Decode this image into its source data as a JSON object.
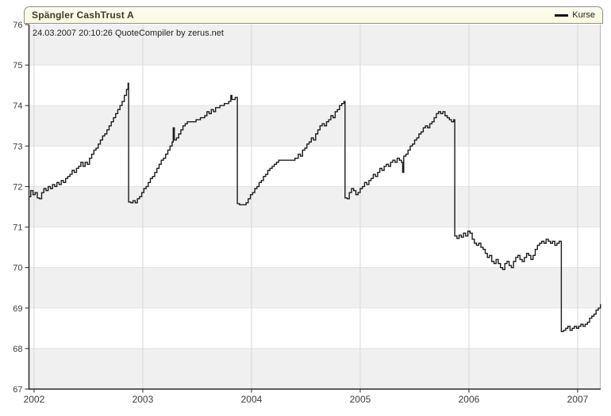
{
  "header": {
    "title": "Spängler CashTrust A",
    "subtitle": "24.03.2007 20:10:26 QuoteCompiler by zerus.net",
    "legend_label": "Kurse"
  },
  "colors": {
    "titlebar_bg": "#f9f9dd",
    "titlebar_border": "#8f8f8f",
    "title_text": "#3e3c20",
    "band_gray": "#f0f0f0",
    "band_white": "#ffffff",
    "vgrid": "#d7d7d7",
    "hgrid": "#e2e2e2",
    "axis": "#2a2a2a",
    "right_border": "#b5b5b5",
    "line": "#1c1c1c",
    "tick_text": "#3d3d3d"
  },
  "chart_data": {
    "type": "line",
    "title": "Spängler CashTrust A",
    "subtitle": "24.03.2007 20:10:26 QuoteCompiler by zerus.net",
    "legend": [
      "Kurse"
    ],
    "legend_position": "top-right",
    "step": true,
    "grid": true,
    "band_fill": "alternating-gray-on-odd-integers",
    "xlabel": "",
    "ylabel": "",
    "xlim": [
      2001.953,
      2007.212
    ],
    "ylim": [
      67,
      76
    ],
    "x_ticks": [
      2002,
      2003,
      2004,
      2005,
      2006,
      2007
    ],
    "y_ticks": [
      67,
      68,
      69,
      70,
      71,
      72,
      73,
      74,
      75,
      76
    ],
    "series": [
      {
        "name": "Kurse",
        "points": [
          [
            2001.953,
            71.75
          ],
          [
            2001.97,
            71.9
          ],
          [
            2001.99,
            71.8
          ],
          [
            2002.01,
            71.85
          ],
          [
            2002.03,
            71.72
          ],
          [
            2002.05,
            71.7
          ],
          [
            2002.07,
            71.85
          ],
          [
            2002.09,
            71.95
          ],
          [
            2002.11,
            71.9
          ],
          [
            2002.13,
            72.0
          ],
          [
            2002.15,
            71.95
          ],
          [
            2002.17,
            72.05
          ],
          [
            2002.19,
            72.0
          ],
          [
            2002.21,
            72.1
          ],
          [
            2002.23,
            72.05
          ],
          [
            2002.25,
            72.15
          ],
          [
            2002.27,
            72.1
          ],
          [
            2002.29,
            72.2
          ],
          [
            2002.31,
            72.25
          ],
          [
            2002.33,
            72.3
          ],
          [
            2002.35,
            72.4
          ],
          [
            2002.37,
            72.35
          ],
          [
            2002.39,
            72.45
          ],
          [
            2002.41,
            72.5
          ],
          [
            2002.43,
            72.6
          ],
          [
            2002.45,
            72.5
          ],
          [
            2002.47,
            72.6
          ],
          [
            2002.49,
            72.55
          ],
          [
            2002.51,
            72.7
          ],
          [
            2002.53,
            72.8
          ],
          [
            2002.55,
            72.9
          ],
          [
            2002.57,
            72.95
          ],
          [
            2002.59,
            73.05
          ],
          [
            2002.61,
            73.15
          ],
          [
            2002.63,
            73.25
          ],
          [
            2002.65,
            73.3
          ],
          [
            2002.67,
            73.4
          ],
          [
            2002.69,
            73.5
          ],
          [
            2002.71,
            73.6
          ],
          [
            2002.73,
            73.7
          ],
          [
            2002.75,
            73.8
          ],
          [
            2002.77,
            73.9
          ],
          [
            2002.79,
            74.0
          ],
          [
            2002.81,
            74.1
          ],
          [
            2002.83,
            74.25
          ],
          [
            2002.85,
            74.4
          ],
          [
            2002.865,
            74.55
          ],
          [
            2002.87,
            71.62
          ],
          [
            2002.89,
            71.6
          ],
          [
            2002.91,
            71.65
          ],
          [
            2002.93,
            71.6
          ],
          [
            2002.95,
            71.7
          ],
          [
            2002.97,
            71.75
          ],
          [
            2002.99,
            71.85
          ],
          [
            2003.01,
            71.95
          ],
          [
            2003.03,
            72.0
          ],
          [
            2003.05,
            72.1
          ],
          [
            2003.07,
            72.2
          ],
          [
            2003.09,
            72.25
          ],
          [
            2003.11,
            72.35
          ],
          [
            2003.13,
            72.45
          ],
          [
            2003.15,
            72.55
          ],
          [
            2003.17,
            72.65
          ],
          [
            2003.19,
            72.7
          ],
          [
            2003.21,
            72.8
          ],
          [
            2003.23,
            72.9
          ],
          [
            2003.25,
            73.0
          ],
          [
            2003.27,
            73.1
          ],
          [
            2003.28,
            73.45
          ],
          [
            2003.29,
            73.15
          ],
          [
            2003.31,
            73.2
          ],
          [
            2003.33,
            73.3
          ],
          [
            2003.35,
            73.4
          ],
          [
            2003.37,
            73.5
          ],
          [
            2003.39,
            73.55
          ],
          [
            2003.41,
            73.6
          ],
          [
            2003.45,
            73.6
          ],
          [
            2003.49,
            73.65
          ],
          [
            2003.53,
            73.7
          ],
          [
            2003.57,
            73.75
          ],
          [
            2003.59,
            73.85
          ],
          [
            2003.61,
            73.8
          ],
          [
            2003.63,
            73.9
          ],
          [
            2003.65,
            73.85
          ],
          [
            2003.67,
            73.95
          ],
          [
            2003.71,
            74.0
          ],
          [
            2003.75,
            74.05
          ],
          [
            2003.79,
            74.1
          ],
          [
            2003.81,
            74.25
          ],
          [
            2003.82,
            74.15
          ],
          [
            2003.85,
            74.2
          ],
          [
            2003.87,
            71.58
          ],
          [
            2003.89,
            71.55
          ],
          [
            2003.93,
            71.55
          ],
          [
            2003.95,
            71.6
          ],
          [
            2003.97,
            71.7
          ],
          [
            2003.99,
            71.8
          ],
          [
            2004.01,
            71.85
          ],
          [
            2004.03,
            71.95
          ],
          [
            2004.05,
            72.0
          ],
          [
            2004.07,
            72.1
          ],
          [
            2004.09,
            72.15
          ],
          [
            2004.11,
            72.25
          ],
          [
            2004.13,
            72.3
          ],
          [
            2004.15,
            72.4
          ],
          [
            2004.17,
            72.45
          ],
          [
            2004.19,
            72.5
          ],
          [
            2004.21,
            72.55
          ],
          [
            2004.23,
            72.6
          ],
          [
            2004.25,
            72.65
          ],
          [
            2004.31,
            72.65
          ],
          [
            2004.37,
            72.65
          ],
          [
            2004.4,
            72.7
          ],
          [
            2004.43,
            72.8
          ],
          [
            2004.45,
            72.75
          ],
          [
            2004.47,
            72.9
          ],
          [
            2004.49,
            72.95
          ],
          [
            2004.51,
            73.05
          ],
          [
            2004.53,
            73.1
          ],
          [
            2004.55,
            73.2
          ],
          [
            2004.57,
            73.15
          ],
          [
            2004.59,
            73.3
          ],
          [
            2004.61,
            73.4
          ],
          [
            2004.63,
            73.5
          ],
          [
            2004.65,
            73.55
          ],
          [
            2004.67,
            73.5
          ],
          [
            2004.69,
            73.6
          ],
          [
            2004.71,
            73.65
          ],
          [
            2004.73,
            73.75
          ],
          [
            2004.75,
            73.7
          ],
          [
            2004.77,
            73.85
          ],
          [
            2004.79,
            73.9
          ],
          [
            2004.81,
            74.0
          ],
          [
            2004.83,
            74.05
          ],
          [
            2004.85,
            74.1
          ],
          [
            2004.86,
            71.72
          ],
          [
            2004.88,
            71.7
          ],
          [
            2004.9,
            71.85
          ],
          [
            2004.92,
            71.95
          ],
          [
            2004.94,
            71.9
          ],
          [
            2004.96,
            71.8
          ],
          [
            2004.98,
            71.85
          ],
          [
            2005.0,
            71.95
          ],
          [
            2005.02,
            72.0
          ],
          [
            2005.04,
            72.1
          ],
          [
            2005.06,
            72.05
          ],
          [
            2005.08,
            72.15
          ],
          [
            2005.1,
            72.2
          ],
          [
            2005.12,
            72.3
          ],
          [
            2005.14,
            72.25
          ],
          [
            2005.16,
            72.35
          ],
          [
            2005.18,
            72.45
          ],
          [
            2005.2,
            72.4
          ],
          [
            2005.22,
            72.5
          ],
          [
            2005.24,
            72.55
          ],
          [
            2005.26,
            72.5
          ],
          [
            2005.28,
            72.6
          ],
          [
            2005.3,
            72.65
          ],
          [
            2005.32,
            72.6
          ],
          [
            2005.34,
            72.7
          ],
          [
            2005.36,
            72.65
          ],
          [
            2005.38,
            72.6
          ],
          [
            2005.39,
            72.35
          ],
          [
            2005.4,
            72.75
          ],
          [
            2005.42,
            72.8
          ],
          [
            2005.44,
            72.9
          ],
          [
            2005.46,
            73.0
          ],
          [
            2005.48,
            73.05
          ],
          [
            2005.5,
            73.15
          ],
          [
            2005.52,
            73.2
          ],
          [
            2005.54,
            73.3
          ],
          [
            2005.56,
            73.35
          ],
          [
            2005.58,
            73.45
          ],
          [
            2005.6,
            73.5
          ],
          [
            2005.62,
            73.45
          ],
          [
            2005.64,
            73.55
          ],
          [
            2005.66,
            73.6
          ],
          [
            2005.68,
            73.7
          ],
          [
            2005.7,
            73.8
          ],
          [
            2005.72,
            73.85
          ],
          [
            2005.74,
            73.8
          ],
          [
            2005.76,
            73.85
          ],
          [
            2005.78,
            73.75
          ],
          [
            2005.8,
            73.7
          ],
          [
            2005.82,
            73.65
          ],
          [
            2005.84,
            73.6
          ],
          [
            2005.86,
            73.65
          ],
          [
            2005.87,
            70.78
          ],
          [
            2005.89,
            70.72
          ],
          [
            2005.91,
            70.8
          ],
          [
            2005.93,
            70.75
          ],
          [
            2005.95,
            70.85
          ],
          [
            2005.97,
            70.78
          ],
          [
            2005.99,
            70.9
          ],
          [
            2006.01,
            70.85
          ],
          [
            2006.03,
            70.7
          ],
          [
            2006.05,
            70.6
          ],
          [
            2006.07,
            70.55
          ],
          [
            2006.09,
            70.6
          ],
          [
            2006.11,
            70.5
          ],
          [
            2006.13,
            70.45
          ],
          [
            2006.15,
            70.35
          ],
          [
            2006.17,
            70.25
          ],
          [
            2006.19,
            70.3
          ],
          [
            2006.21,
            70.15
          ],
          [
            2006.23,
            70.1
          ],
          [
            2006.25,
            70.2
          ],
          [
            2006.27,
            70.1
          ],
          [
            2006.29,
            70.0
          ],
          [
            2006.31,
            69.95
          ],
          [
            2006.33,
            70.1
          ],
          [
            2006.35,
            70.15
          ],
          [
            2006.37,
            70.05
          ],
          [
            2006.39,
            70.0
          ],
          [
            2006.41,
            70.15
          ],
          [
            2006.43,
            70.25
          ],
          [
            2006.45,
            70.3
          ],
          [
            2006.47,
            70.2
          ],
          [
            2006.49,
            70.15
          ],
          [
            2006.51,
            70.25
          ],
          [
            2006.53,
            70.35
          ],
          [
            2006.55,
            70.3
          ],
          [
            2006.57,
            70.2
          ],
          [
            2006.59,
            70.3
          ],
          [
            2006.61,
            70.45
          ],
          [
            2006.63,
            70.55
          ],
          [
            2006.65,
            70.6
          ],
          [
            2006.67,
            70.65
          ],
          [
            2006.69,
            70.6
          ],
          [
            2006.71,
            70.7
          ],
          [
            2006.73,
            70.65
          ],
          [
            2006.75,
            70.6
          ],
          [
            2006.77,
            70.65
          ],
          [
            2006.79,
            70.55
          ],
          [
            2006.81,
            70.6
          ],
          [
            2006.83,
            70.65
          ],
          [
            2006.85,
            68.42
          ],
          [
            2006.87,
            68.45
          ],
          [
            2006.89,
            68.5
          ],
          [
            2006.91,
            68.55
          ],
          [
            2006.93,
            68.45
          ],
          [
            2006.95,
            68.5
          ],
          [
            2006.97,
            68.55
          ],
          [
            2006.99,
            68.5
          ],
          [
            2007.01,
            68.55
          ],
          [
            2007.03,
            68.6
          ],
          [
            2007.05,
            68.55
          ],
          [
            2007.07,
            68.6
          ],
          [
            2007.09,
            68.65
          ],
          [
            2007.11,
            68.75
          ],
          [
            2007.13,
            68.8
          ],
          [
            2007.15,
            68.85
          ],
          [
            2007.17,
            68.95
          ],
          [
            2007.19,
            69.0
          ],
          [
            2007.21,
            69.1
          ]
        ]
      }
    ]
  }
}
